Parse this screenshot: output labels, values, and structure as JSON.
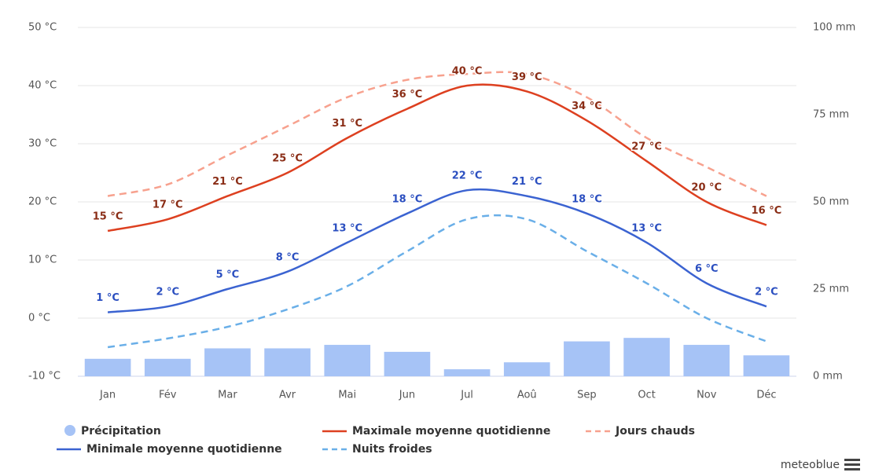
{
  "chart_data": {
    "type": "combo",
    "categories": [
      "Jan",
      "Fév",
      "Mar",
      "Avr",
      "Mai",
      "Jun",
      "Jul",
      "Aoû",
      "Sep",
      "Oct",
      "Nov",
      "Déc"
    ],
    "ylim": [
      -10,
      50
    ],
    "yticks": [
      {
        "value": -10,
        "label": "-10 °C"
      },
      {
        "value": 0,
        "label": "0 °C"
      },
      {
        "value": 10,
        "label": "10 °C"
      },
      {
        "value": 20,
        "label": "20 °C"
      },
      {
        "value": 30,
        "label": "30 °C"
      },
      {
        "value": 40,
        "label": "40 °C"
      },
      {
        "value": 50,
        "label": "50 °C"
      }
    ],
    "y2lim": [
      0,
      100
    ],
    "y2ticks": [
      {
        "value": 0,
        "label": "0 mm"
      },
      {
        "value": 25,
        "label": "25 mm"
      },
      {
        "value": 50,
        "label": "50 mm"
      },
      {
        "value": 75,
        "label": "75 mm"
      },
      {
        "value": 100,
        "label": "100 mm"
      }
    ],
    "grid": true,
    "series": [
      {
        "name": "Précipitation",
        "type": "bar",
        "axis": "y2",
        "color": "#a6c3f6",
        "values": [
          5,
          5,
          8,
          8,
          9,
          7,
          2,
          4,
          10,
          11,
          9,
          6
        ]
      },
      {
        "name": "Maximale moyenne quotidienne",
        "type": "line",
        "color": "#dd4020",
        "values": [
          15,
          17,
          21,
          25,
          31,
          36,
          40,
          39,
          34,
          27,
          20,
          16
        ],
        "value_labels": [
          "15 °C",
          "17 °C",
          "21 °C",
          "25 °C",
          "31 °C",
          "36 °C",
          "40 °C",
          "39 °C",
          "34 °C",
          "27 °C",
          "20 °C",
          "16 °C"
        ]
      },
      {
        "name": "Jours chauds",
        "type": "line",
        "dashed": true,
        "color": "#f7a18e",
        "values": [
          21,
          23,
          28,
          33,
          38,
          41,
          42,
          42,
          38,
          31,
          26,
          21
        ]
      },
      {
        "name": "Minimale moyenne quotidienne",
        "type": "line",
        "color": "#3b63d1",
        "values": [
          1,
          2,
          5,
          8,
          13,
          18,
          22,
          21,
          18,
          13,
          6,
          2
        ],
        "value_labels": [
          "1 °C",
          "2 °C",
          "5 °C",
          "8 °C",
          "13 °C",
          "18 °C",
          "22 °C",
          "21 °C",
          "18 °C",
          "13 °C",
          "6 °C",
          "2 °C"
        ]
      },
      {
        "name": "Nuits froides",
        "type": "line",
        "dashed": true,
        "color": "#6aafe8",
        "values": [
          -5,
          -3.5,
          -1.5,
          1.5,
          5.5,
          11.5,
          17,
          17,
          11.5,
          6,
          0,
          -4
        ]
      }
    ]
  },
  "branding": "meteoblue"
}
